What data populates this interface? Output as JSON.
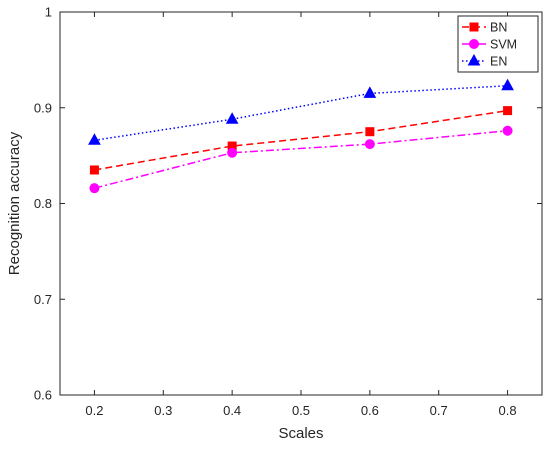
{
  "chart_data": {
    "type": "line",
    "title": "",
    "xlabel": "Scales",
    "ylabel": "Recognition accuracy",
    "x": [
      0.2,
      0.4,
      0.6,
      0.8
    ],
    "xlim": [
      0.15,
      0.85
    ],
    "ylim": [
      0.6,
      1.0
    ],
    "xticks": [
      "0.2",
      "0.3",
      "0.4",
      "0.5",
      "0.6",
      "0.7",
      "0.8"
    ],
    "yticks": [
      "0.6",
      "0.7",
      "0.8",
      "0.9",
      "1"
    ],
    "xtick_values": [
      0.2,
      0.3,
      0.4,
      0.5,
      0.6,
      0.7,
      0.8
    ],
    "ytick_values": [
      0.6,
      0.7,
      0.8,
      0.9,
      1.0
    ],
    "grid": false,
    "legend_position": "top-right",
    "series": [
      {
        "name": "BN",
        "values": [
          0.835,
          0.86,
          0.875,
          0.897
        ],
        "color": "#ff0000",
        "line_style": "dashed",
        "marker": "square"
      },
      {
        "name": "SVM",
        "values": [
          0.816,
          0.853,
          0.862,
          0.876
        ],
        "color": "#ff00ff",
        "line_style": "dash-dot",
        "marker": "circle"
      },
      {
        "name": "EN",
        "values": [
          0.866,
          0.888,
          0.915,
          0.923
        ],
        "color": "#0000ff",
        "line_style": "dotted",
        "marker": "triangle"
      }
    ]
  }
}
